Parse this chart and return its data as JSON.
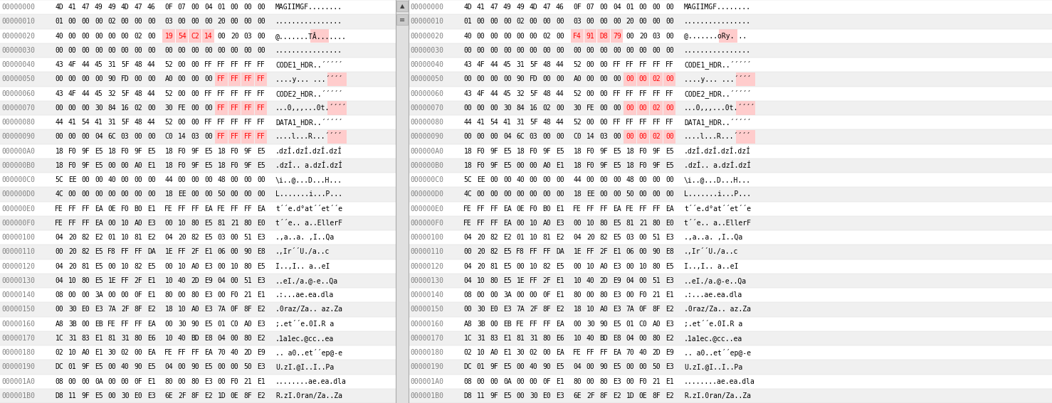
{
  "bg_color": "#ffffff",
  "panel_bg_odd": "#f0f0f0",
  "panel_bg_even": "#ffffff",
  "highlight_color": "#ffcccc",
  "highlight_text_color": "#ff0000",
  "normal_text_color": "#000000",
  "addr_color": "#808080",
  "font_size": 7.0,
  "rows": [
    "00000000",
    "00000010",
    "00000020",
    "00000030",
    "00000040",
    "00000050",
    "00000060",
    "00000070",
    "00000080",
    "00000090",
    "000000A0",
    "000000B0",
    "000000C0",
    "000000D0",
    "000000E0",
    "000000F0",
    "00000100",
    "00000110",
    "00000120",
    "00000130",
    "00000140",
    "00000150",
    "00000160",
    "00000170",
    "00000180",
    "00000190",
    "000001A0",
    "000001B0"
  ],
  "left_hex": [
    "4D 41 47 49 49 4D 47 46 0F 07 00 04 01 00 00 00",
    "01 00 00 00 02 00 00 00 03 00 00 00 20 00 00 00",
    "40 00 00 00 00 00 02 00 19 54 C2 14 00 20 03 00",
    "00 00 00 00 00 00 00 00 00 00 00 00 00 00 00 00",
    "43 4F 44 45 31 5F 48 44 52 00 00 FF FF FF FF FF",
    "00 00 00 00 90 FD 00 00 A0 00 00 00 FF FF FF FF",
    "43 4F 44 45 32 5F 48 44 52 00 00 FF FF FF FF FF",
    "00 00 00 30 84 16 02 00 30 FE 00 00 FF FF FF FF",
    "44 41 54 41 31 5F 48 44 52 00 00 FF FF FF FF FF",
    "00 00 00 04 6C 03 00 00 C0 14 03 00 FF FF FF FF",
    "18 F0 9F E5 18 F0 9F E5 18 F0 9F E5 18 F0 9F E5",
    "18 F0 9F E5 00 00 A0 E1 18 F0 9F E5 18 F0 9F E5",
    "5C EE 00 00 40 00 00 00 44 00 00 00 48 00 00 00",
    "4C 00 00 00 00 00 00 00 18 EE 00 00 50 00 00 00",
    "FE FF FF EA 0E F0 B0 E1 FE FF FF EA FE FF FF EA",
    "FE FF FF EA 00 10 A0 E3 00 10 80 E5 81 21 80 E0",
    "04 20 82 E2 01 10 81 E2 04 20 82 E5 03 00 51 E3",
    "00 20 82 E5 F8 FF FF DA 1E FF 2F E1 06 00 90 E8",
    "04 20 81 E5 00 10 82 E5 00 10 A0 E3 00 10 80 E5",
    "04 10 80 E5 1E FF 2F E1 10 40 2D E9 04 00 51 E3",
    "08 00 00 3A 00 00 0F E1 80 00 80 E3 00 F0 21 E1",
    "00 30 E0 E3 7A 2F 8F E2 18 10 A0 E3 7A 0F 8F E2",
    "A8 3B 00 EB FE FF FF EA 00 30 90 E5 01 C0 A0 E3",
    "1C 31 83 E1 81 31 80 E6 10 40 BD E8 04 00 80 E2",
    "02 10 A0 E1 30 02 00 EA FE FF FF EA 70 40 2D E9",
    "DC 01 9F E5 00 40 90 E5 04 00 90 E5 00 00 50 E3",
    "08 00 00 0A 00 00 0F E1 80 00 80 E3 00 F0 21 E1",
    "D8 11 9F E5 00 30 E0 E3 6E 2F 8F E2 1D 0E 8F E2"
  ],
  "right_hex": [
    "4D 41 47 49 49 4D 47 46 0F 07 00 04 01 00 00 00",
    "01 00 00 00 02 00 00 00 03 00 00 00 20 00 00 00",
    "40 00 00 00 00 00 02 00 F4 91 D8 79 00 20 03 00",
    "00 00 00 00 00 00 00 00 00 00 00 00 00 00 00 00",
    "43 4F 44 45 31 5F 48 44 52 00 00 FF FF FF FF FF",
    "00 00 00 00 90 FD 00 00 A0 00 00 00 00 00 02 00",
    "43 4F 44 45 32 5F 48 44 52 00 00 FF FF FF FF FF",
    "00 00 00 30 84 16 02 00 30 FE 00 00 00 00 02 00",
    "44 41 54 41 31 5F 48 44 52 00 00 FF FF FF FF FF",
    "00 00 00 04 6C 03 00 00 C0 14 03 00 00 00 02 00",
    "18 F0 9F E5 18 F0 9F E5 18 F0 9F E5 18 F0 9F E5",
    "18 F0 9F E5 00 00 A0 E1 18 F0 9F E5 18 F0 9F E5",
    "5C EE 00 00 40 00 00 00 44 00 00 00 48 00 00 00",
    "4C 00 00 00 00 00 00 00 18 EE 00 00 50 00 00 00",
    "FE FF FF EA 0E F0 B0 E1 FE FF FF EA FE FF FF EA",
    "FE FF FF EA 00 10 A0 E3 00 10 80 E5 81 21 80 E0",
    "04 20 82 E2 01 10 81 E2 04 20 82 E5 03 00 51 E3",
    "00 20 82 E5 F8 FF FF DA 1E FF 2F E1 06 00 90 E8",
    "04 20 81 E5 00 10 82 E5 00 10 A0 E3 00 10 80 E5",
    "04 10 80 E5 1E FF 2F E1 10 40 2D E9 04 00 51 E3",
    "08 00 00 3A 00 00 0F E1 80 00 80 E3 00 F0 21 E1",
    "00 30 E0 E3 7A 2F 8F E2 18 10 A0 E3 7A 0F 8F E2",
    "A8 3B 00 EB FE FF FF EA 00 30 90 E5 01 C0 A0 E3",
    "1C 31 83 E1 81 31 80 E6 10 40 BD E8 04 00 80 E2",
    "02 10 A0 E1 30 02 00 EA FE FF FF EA 70 40 2D E9",
    "DC 01 9F E5 00 40 90 E5 04 00 90 E5 00 00 50 E3",
    "08 00 00 0A 00 00 0F E1 80 00 80 E3 00 F0 21 E1",
    "D8 11 9F E5 00 30 E0 E3 6E 2F 8F E2 1D 0E 8F E2"
  ],
  "left_ascii": [
    "MAGIIMGF........",
    "................",
    "@.......TÂ.......",
    "................",
    "CODE1_HDR..´´´´´",
    "....y... ...´´´´",
    "CODE2_HDR..´´´´´",
    "...0,,,...0t.´´´´",
    "DATA1_HDR..´´´´´",
    "....l...R...´´´´",
    ".dzÍ.dzÍ.dzÍ.dzÍ",
    ".dzÍ.. a.dzÍ.dzÍ",
    "\\i..@...D...H...",
    "L.......i...P...",
    "t´´e.d°at´´et´´e",
    "t´´e.. a..EllerF",
    ".,a..a. ,I..Qa",
    ".,Ir´´U./a..c",
    "I..,I.. a..eI",
    "..eI./a.@-e..Qa",
    ".:...ae.ea.dla",
    ".0raz/Za.. az.Za",
    ";.et´´e.0I.R a",
    ".1a1ec.@cc..ea",
    ".. a0..et´´ep@-e",
    "U.zI.@I..I..Pa",
    "........ae.ea.dla",
    "R.zI.0ran/Za..Za"
  ],
  "right_ascii": [
    "MAGIIMGF........",
    "................",
    "@.......oRy. ..",
    "................",
    "CODE1_HDR..´´´´´",
    "....y... ...´´´´",
    "CODE2_HDR..´´´´´",
    "...0,,,...0t.´´´´",
    "DATA1_HDR..´´´´´",
    "....l...R...´´´´",
    ".dzÍ.dzÍ.dzÍ.dzÍ",
    ".dzÍ.. a.dzÍ.dzÍ",
    "\\i..@...D...H...",
    "L.......i...P...",
    "t´´e.d°at´´et´´e",
    "t´´e.. a..EllerF",
    ".,a..a. ,I..Qa",
    ".,Ir´´U./a..c",
    "I..,I.. a..eI",
    "..eI./a.@-e..Qa",
    ".:...ae.ea.dla",
    ".0raz/Za.. az.Za",
    ";.et´´e.0I.R a",
    ".1a1ec.@cc..ea",
    ".. a0..et´´ep@-e",
    "U.zI.@I..I..Pa",
    "........ae.ea.dla",
    "R.zI.0ran/Za..Za"
  ],
  "left_highlights": {
    "2": [
      8,
      9,
      10,
      11
    ],
    "5": [
      12,
      13,
      14,
      15
    ],
    "7": [
      12,
      13,
      14,
      15
    ],
    "9": [
      12,
      13,
      14,
      15
    ]
  },
  "right_highlights": {
    "2": [
      8,
      9,
      10,
      11
    ],
    "5": [
      12,
      13,
      14,
      15
    ],
    "7": [
      12,
      13,
      14,
      15
    ],
    "9": [
      12,
      13,
      14,
      15
    ]
  },
  "left_hi_vals": {
    "2_8": "19",
    "2_9": "54",
    "2_10": "C2",
    "2_11": "14",
    "5_12": "FF",
    "5_13": "FF",
    "5_14": "FF",
    "5_15": "FF",
    "7_12": "FF",
    "7_13": "FF",
    "7_14": "FF",
    "7_15": "FF",
    "9_12": "FF",
    "9_13": "FF",
    "9_14": "FF",
    "9_15": "FF"
  },
  "right_hi_vals": {
    "2_8": "F4",
    "2_9": "91",
    "2_10": "D8",
    "2_11": "79",
    "5_12": "00",
    "5_13": "00",
    "5_14": "02",
    "5_15": "00",
    "7_12": "00",
    "7_13": "00",
    "7_14": "02",
    "7_15": "00",
    "9_12": "00",
    "9_13": "00",
    "9_14": "02",
    "9_15": "00"
  }
}
